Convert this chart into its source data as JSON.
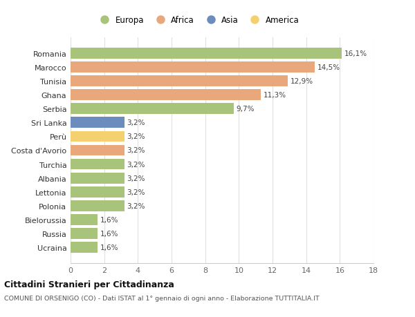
{
  "countries": [
    "Romania",
    "Marocco",
    "Tunisia",
    "Ghana",
    "Serbia",
    "Sri Lanka",
    "Perù",
    "Costa d'Avorio",
    "Turchia",
    "Albania",
    "Lettonia",
    "Polonia",
    "Bielorussia",
    "Russia",
    "Ucraina"
  ],
  "values": [
    16.1,
    14.5,
    12.9,
    11.3,
    9.7,
    3.2,
    3.2,
    3.2,
    3.2,
    3.2,
    3.2,
    3.2,
    1.6,
    1.6,
    1.6
  ],
  "labels": [
    "16,1%",
    "14,5%",
    "12,9%",
    "11,3%",
    "9,7%",
    "3,2%",
    "3,2%",
    "3,2%",
    "3,2%",
    "3,2%",
    "3,2%",
    "3,2%",
    "1,6%",
    "1,6%",
    "1,6%"
  ],
  "continents": [
    "Europa",
    "Africa",
    "Africa",
    "Africa",
    "Europa",
    "Asia",
    "America",
    "Africa",
    "Europa",
    "Europa",
    "Europa",
    "Europa",
    "Europa",
    "Europa",
    "Europa"
  ],
  "colors": {
    "Europa": "#a8c47a",
    "Africa": "#e8a87c",
    "Asia": "#6b8cbd",
    "America": "#f5d06e"
  },
  "legend_order": [
    "Europa",
    "Africa",
    "Asia",
    "America"
  ],
  "title": "Cittadini Stranieri per Cittadinanza",
  "subtitle": "COMUNE DI ORSENIGO (CO) - Dati ISTAT al 1° gennaio di ogni anno - Elaborazione TUTTITALIA.IT",
  "xlim": [
    0,
    18
  ],
  "xticks": [
    0,
    2,
    4,
    6,
    8,
    10,
    12,
    14,
    16,
    18
  ],
  "background_color": "#ffffff",
  "grid_color": "#e0e0e0"
}
